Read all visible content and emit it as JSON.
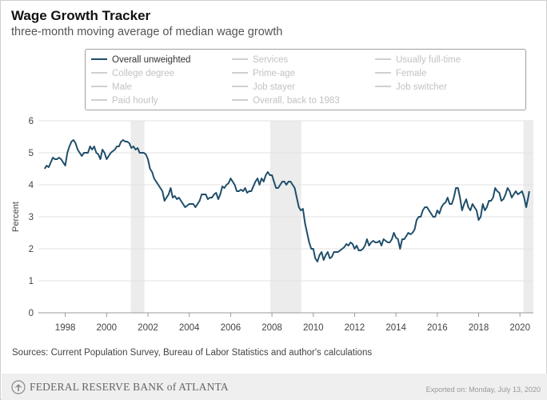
{
  "header": {
    "title": "Wage Growth Tracker",
    "subtitle": "three-month moving average of median wage growth"
  },
  "legend": {
    "items": [
      {
        "label": "Overall unweighted",
        "active": true
      },
      {
        "label": "Services",
        "active": false
      },
      {
        "label": "Usually full-time",
        "active": false
      },
      {
        "label": "College degree",
        "active": false
      },
      {
        "label": "Prime-age",
        "active": false
      },
      {
        "label": "Female",
        "active": false
      },
      {
        "label": "Male",
        "active": false
      },
      {
        "label": "Job stayer",
        "active": false
      },
      {
        "label": "Job switcher",
        "active": false
      },
      {
        "label": "Paid hourly",
        "active": false
      },
      {
        "label": "Overall, back to 1983",
        "active": false
      }
    ]
  },
  "chart_data": {
    "type": "line",
    "title": "Wage Growth Tracker",
    "subtitle": "three-month moving average of median wage growth",
    "ylabel": "Percent",
    "xlabel": "",
    "ylim": [
      0,
      6
    ],
    "xlim": [
      1996.7,
      2020.65
    ],
    "yticks": [
      "0",
      "1",
      "2",
      "3",
      "4",
      "5",
      "6"
    ],
    "xticks": [
      "1998",
      "2000",
      "2002",
      "2004",
      "2006",
      "2008",
      "2010",
      "2012",
      "2014",
      "2016",
      "2018",
      "2020"
    ],
    "grid": "horizontal",
    "recessions": [
      [
        2001.17,
        2001.83
      ],
      [
        2007.92,
        2009.42
      ],
      [
        2020.17,
        2020.65
      ]
    ],
    "series": [
      {
        "name": "Overall unweighted",
        "color": "#1f4e6b",
        "points": [
          [
            1997.0,
            4.5
          ],
          [
            1997.1,
            4.6
          ],
          [
            1997.2,
            4.55
          ],
          [
            1997.3,
            4.7
          ],
          [
            1997.4,
            4.85
          ],
          [
            1997.5,
            4.8
          ],
          [
            1997.6,
            4.8
          ],
          [
            1997.7,
            4.85
          ],
          [
            1997.8,
            4.8
          ],
          [
            1997.9,
            4.7
          ],
          [
            1998.0,
            4.6
          ],
          [
            1998.1,
            5.0
          ],
          [
            1998.2,
            5.2
          ],
          [
            1998.3,
            5.35
          ],
          [
            1998.4,
            5.4
          ],
          [
            1998.5,
            5.3
          ],
          [
            1998.6,
            5.1
          ],
          [
            1998.7,
            5.0
          ],
          [
            1998.8,
            4.9
          ],
          [
            1998.9,
            5.0
          ],
          [
            1999.0,
            5.0
          ],
          [
            1999.1,
            5.0
          ],
          [
            1999.2,
            5.2
          ],
          [
            1999.3,
            5.1
          ],
          [
            1999.4,
            5.2
          ],
          [
            1999.5,
            5.0
          ],
          [
            1999.6,
            4.95
          ],
          [
            1999.7,
            4.8
          ],
          [
            1999.8,
            5.1
          ],
          [
            1999.9,
            5.0
          ],
          [
            2000.0,
            4.8
          ],
          [
            2000.1,
            4.9
          ],
          [
            2000.2,
            5.0
          ],
          [
            2000.3,
            5.05
          ],
          [
            2000.4,
            5.1
          ],
          [
            2000.5,
            5.2
          ],
          [
            2000.6,
            5.2
          ],
          [
            2000.7,
            5.35
          ],
          [
            2000.8,
            5.4
          ],
          [
            2000.9,
            5.35
          ],
          [
            2001.0,
            5.35
          ],
          [
            2001.1,
            5.3
          ],
          [
            2001.2,
            5.15
          ],
          [
            2001.3,
            5.2
          ],
          [
            2001.4,
            5.1
          ],
          [
            2001.5,
            5.15
          ],
          [
            2001.6,
            5.0
          ],
          [
            2001.7,
            5.0
          ],
          [
            2001.8,
            5.0
          ],
          [
            2001.9,
            4.95
          ],
          [
            2002.0,
            4.8
          ],
          [
            2002.1,
            4.5
          ],
          [
            2002.2,
            4.4
          ],
          [
            2002.3,
            4.2
          ],
          [
            2002.4,
            4.1
          ],
          [
            2002.5,
            4.0
          ],
          [
            2002.6,
            3.9
          ],
          [
            2002.7,
            3.8
          ],
          [
            2002.8,
            3.5
          ],
          [
            2002.9,
            3.6
          ],
          [
            2003.0,
            3.7
          ],
          [
            2003.1,
            3.9
          ],
          [
            2003.2,
            3.6
          ],
          [
            2003.3,
            3.65
          ],
          [
            2003.4,
            3.55
          ],
          [
            2003.5,
            3.6
          ],
          [
            2003.6,
            3.5
          ],
          [
            2003.7,
            3.4
          ],
          [
            2003.8,
            3.3
          ],
          [
            2003.9,
            3.35
          ],
          [
            2004.0,
            3.4
          ],
          [
            2004.1,
            3.4
          ],
          [
            2004.2,
            3.4
          ],
          [
            2004.3,
            3.3
          ],
          [
            2004.4,
            3.4
          ],
          [
            2004.5,
            3.5
          ],
          [
            2004.6,
            3.7
          ],
          [
            2004.7,
            3.7
          ],
          [
            2004.8,
            3.7
          ],
          [
            2004.9,
            3.55
          ],
          [
            2005.0,
            3.6
          ],
          [
            2005.1,
            3.6
          ],
          [
            2005.2,
            3.7
          ],
          [
            2005.3,
            3.75
          ],
          [
            2005.4,
            3.55
          ],
          [
            2005.5,
            3.7
          ],
          [
            2005.6,
            3.95
          ],
          [
            2005.7,
            3.9
          ],
          [
            2005.8,
            4.0
          ],
          [
            2005.9,
            4.05
          ],
          [
            2006.0,
            4.2
          ],
          [
            2006.1,
            4.1
          ],
          [
            2006.2,
            4.0
          ],
          [
            2006.3,
            3.8
          ],
          [
            2006.4,
            3.8
          ],
          [
            2006.5,
            3.85
          ],
          [
            2006.6,
            3.8
          ],
          [
            2006.7,
            3.9
          ],
          [
            2006.8,
            3.75
          ],
          [
            2006.9,
            3.8
          ],
          [
            2007.0,
            3.8
          ],
          [
            2007.1,
            3.95
          ],
          [
            2007.2,
            4.1
          ],
          [
            2007.3,
            4.2
          ],
          [
            2007.4,
            4.0
          ],
          [
            2007.5,
            4.2
          ],
          [
            2007.6,
            4.1
          ],
          [
            2007.7,
            4.3
          ],
          [
            2007.8,
            4.4
          ],
          [
            2007.9,
            4.3
          ],
          [
            2008.0,
            4.3
          ],
          [
            2008.1,
            4.1
          ],
          [
            2008.2,
            3.9
          ],
          [
            2008.3,
            3.9
          ],
          [
            2008.4,
            4.0
          ],
          [
            2008.5,
            4.1
          ],
          [
            2008.6,
            4.1
          ],
          [
            2008.7,
            4.0
          ],
          [
            2008.8,
            4.1
          ],
          [
            2008.9,
            4.1
          ],
          [
            2009.0,
            4.0
          ],
          [
            2009.1,
            3.9
          ],
          [
            2009.2,
            3.6
          ],
          [
            2009.3,
            3.3
          ],
          [
            2009.4,
            3.2
          ],
          [
            2009.5,
            3.25
          ],
          [
            2009.6,
            2.8
          ],
          [
            2009.7,
            2.5
          ],
          [
            2009.8,
            2.2
          ],
          [
            2009.9,
            2.0
          ],
          [
            2010.0,
            2.0
          ],
          [
            2010.1,
            1.7
          ],
          [
            2010.2,
            1.6
          ],
          [
            2010.3,
            1.8
          ],
          [
            2010.4,
            1.9
          ],
          [
            2010.5,
            1.65
          ],
          [
            2010.6,
            1.8
          ],
          [
            2010.7,
            1.9
          ],
          [
            2010.8,
            1.7
          ],
          [
            2010.9,
            1.75
          ],
          [
            2011.0,
            1.9
          ],
          [
            2011.1,
            1.9
          ],
          [
            2011.2,
            1.9
          ],
          [
            2011.3,
            1.95
          ],
          [
            2011.4,
            2.0
          ],
          [
            2011.5,
            2.05
          ],
          [
            2011.6,
            2.15
          ],
          [
            2011.7,
            2.1
          ],
          [
            2011.8,
            2.2
          ],
          [
            2011.9,
            2.15
          ],
          [
            2012.0,
            2.0
          ],
          [
            2012.1,
            2.1
          ],
          [
            2012.2,
            1.95
          ],
          [
            2012.3,
            1.95
          ],
          [
            2012.4,
            2.0
          ],
          [
            2012.5,
            2.1
          ],
          [
            2012.6,
            2.3
          ],
          [
            2012.7,
            2.1
          ],
          [
            2012.8,
            2.2
          ],
          [
            2012.9,
            2.25
          ],
          [
            2013.0,
            2.2
          ],
          [
            2013.1,
            2.2
          ],
          [
            2013.2,
            2.25
          ],
          [
            2013.3,
            2.1
          ],
          [
            2013.4,
            2.3
          ],
          [
            2013.5,
            2.25
          ],
          [
            2013.6,
            2.2
          ],
          [
            2013.7,
            2.2
          ],
          [
            2013.8,
            2.3
          ],
          [
            2013.9,
            2.5
          ],
          [
            2014.0,
            2.35
          ],
          [
            2014.1,
            2.3
          ],
          [
            2014.2,
            2.0
          ],
          [
            2014.3,
            2.3
          ],
          [
            2014.4,
            2.3
          ],
          [
            2014.5,
            2.4
          ],
          [
            2014.6,
            2.5
          ],
          [
            2014.7,
            2.45
          ],
          [
            2014.8,
            2.5
          ],
          [
            2014.9,
            2.6
          ],
          [
            2015.0,
            2.9
          ],
          [
            2015.1,
            3.0
          ],
          [
            2015.2,
            3.0
          ],
          [
            2015.3,
            3.2
          ],
          [
            2015.4,
            3.3
          ],
          [
            2015.5,
            3.3
          ],
          [
            2015.6,
            3.2
          ],
          [
            2015.7,
            3.1
          ],
          [
            2015.8,
            3.0
          ],
          [
            2015.9,
            3.0
          ],
          [
            2016.0,
            3.2
          ],
          [
            2016.1,
            3.1
          ],
          [
            2016.2,
            3.3
          ],
          [
            2016.3,
            3.4
          ],
          [
            2016.4,
            3.45
          ],
          [
            2016.5,
            3.6
          ],
          [
            2016.6,
            3.4
          ],
          [
            2016.7,
            3.4
          ],
          [
            2016.8,
            3.6
          ],
          [
            2016.9,
            3.9
          ],
          [
            2017.0,
            3.9
          ],
          [
            2017.1,
            3.6
          ],
          [
            2017.2,
            3.2
          ],
          [
            2017.3,
            3.4
          ],
          [
            2017.4,
            3.55
          ],
          [
            2017.5,
            3.3
          ],
          [
            2017.6,
            3.2
          ],
          [
            2017.7,
            3.4
          ],
          [
            2017.8,
            3.3
          ],
          [
            2017.9,
            3.2
          ],
          [
            2018.0,
            2.9
          ],
          [
            2018.1,
            3.0
          ],
          [
            2018.2,
            3.4
          ],
          [
            2018.3,
            3.2
          ],
          [
            2018.4,
            3.3
          ],
          [
            2018.5,
            3.5
          ],
          [
            2018.6,
            3.5
          ],
          [
            2018.7,
            3.6
          ],
          [
            2018.8,
            3.9
          ],
          [
            2018.9,
            3.8
          ],
          [
            2019.0,
            3.75
          ],
          [
            2019.1,
            3.5
          ],
          [
            2019.2,
            3.55
          ],
          [
            2019.3,
            3.7
          ],
          [
            2019.4,
            3.9
          ],
          [
            2019.5,
            3.8
          ],
          [
            2019.6,
            3.6
          ],
          [
            2019.7,
            3.7
          ],
          [
            2019.8,
            3.8
          ],
          [
            2019.9,
            3.7
          ],
          [
            2020.0,
            3.75
          ],
          [
            2020.1,
            3.8
          ],
          [
            2020.2,
            3.6
          ],
          [
            2020.3,
            3.3
          ],
          [
            2020.4,
            3.6
          ],
          [
            2020.45,
            3.8
          ]
        ]
      }
    ]
  },
  "sources": "Sources: Current Population Survey, Bureau of Labor Statistics and author's calculations",
  "footer": {
    "org": "FEDERAL RESERVE BANK of ATLANTA",
    "exported": "Exported on:  Monday, July 13, 2020"
  }
}
